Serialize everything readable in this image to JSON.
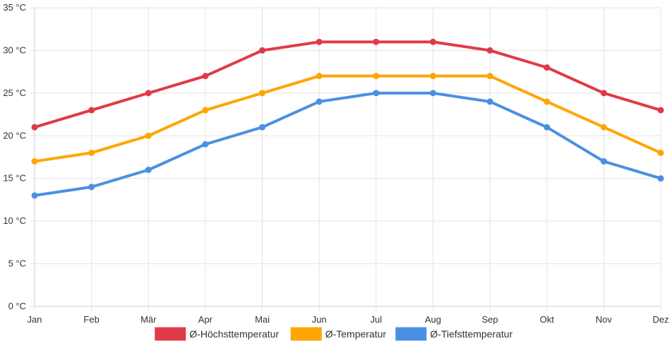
{
  "chart_data": {
    "type": "line",
    "title": "",
    "xlabel": "",
    "ylabel": "",
    "ylim": [
      0,
      35
    ],
    "ytick_step": 5,
    "y_unit": "°C",
    "grid": true,
    "legend": "bottom",
    "categories": [
      "Jan",
      "Feb",
      "Mär",
      "Apr",
      "Mai",
      "Jun",
      "Jul",
      "Aug",
      "Sep",
      "Okt",
      "Nov",
      "Dez"
    ],
    "series": [
      {
        "name": "Ø-Höchsttemperatur",
        "color": "#e03a47",
        "values": [
          21,
          23,
          25,
          27,
          30,
          31,
          31,
          31,
          30,
          28,
          25,
          23
        ]
      },
      {
        "name": "Ø-Temperatur",
        "color": "#ffa500",
        "values": [
          17,
          18,
          20,
          23,
          25,
          27,
          27,
          27,
          27,
          24,
          21,
          18
        ]
      },
      {
        "name": "Ø-Tiefsttemperatur",
        "color": "#4a90e2",
        "values": [
          13,
          14,
          16,
          19,
          21,
          24,
          25,
          25,
          24,
          21,
          17,
          15
        ]
      }
    ]
  }
}
